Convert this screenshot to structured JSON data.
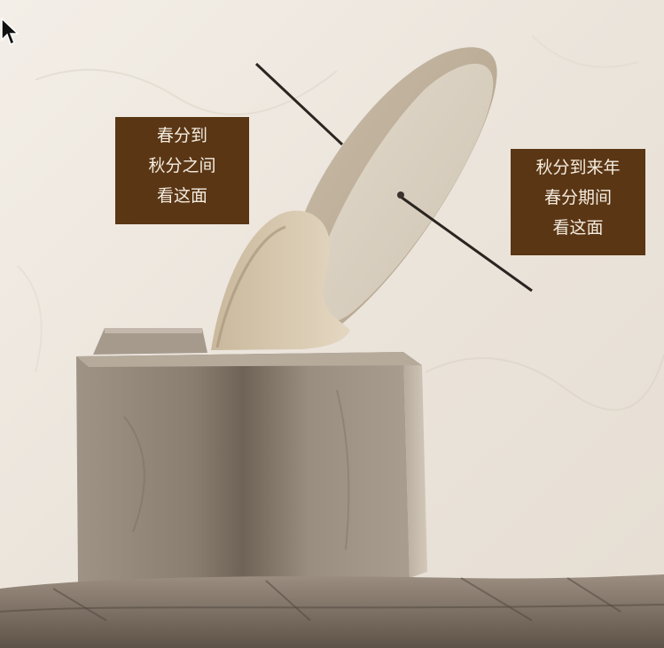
{
  "labels": {
    "spring_to_autumn": [
      "春分到",
      "秋分之间",
      "看这面"
    ],
    "autumn_to_spring": [
      "秋分到来年",
      "春分期间",
      "看这面"
    ]
  },
  "colors": {
    "label_background": "#5a3614",
    "label_text": "#f4ece0",
    "wall": "#efe9e1",
    "stone": "#b8ada0"
  },
  "icons": {
    "cursor": "mouse-pointer-icon"
  }
}
